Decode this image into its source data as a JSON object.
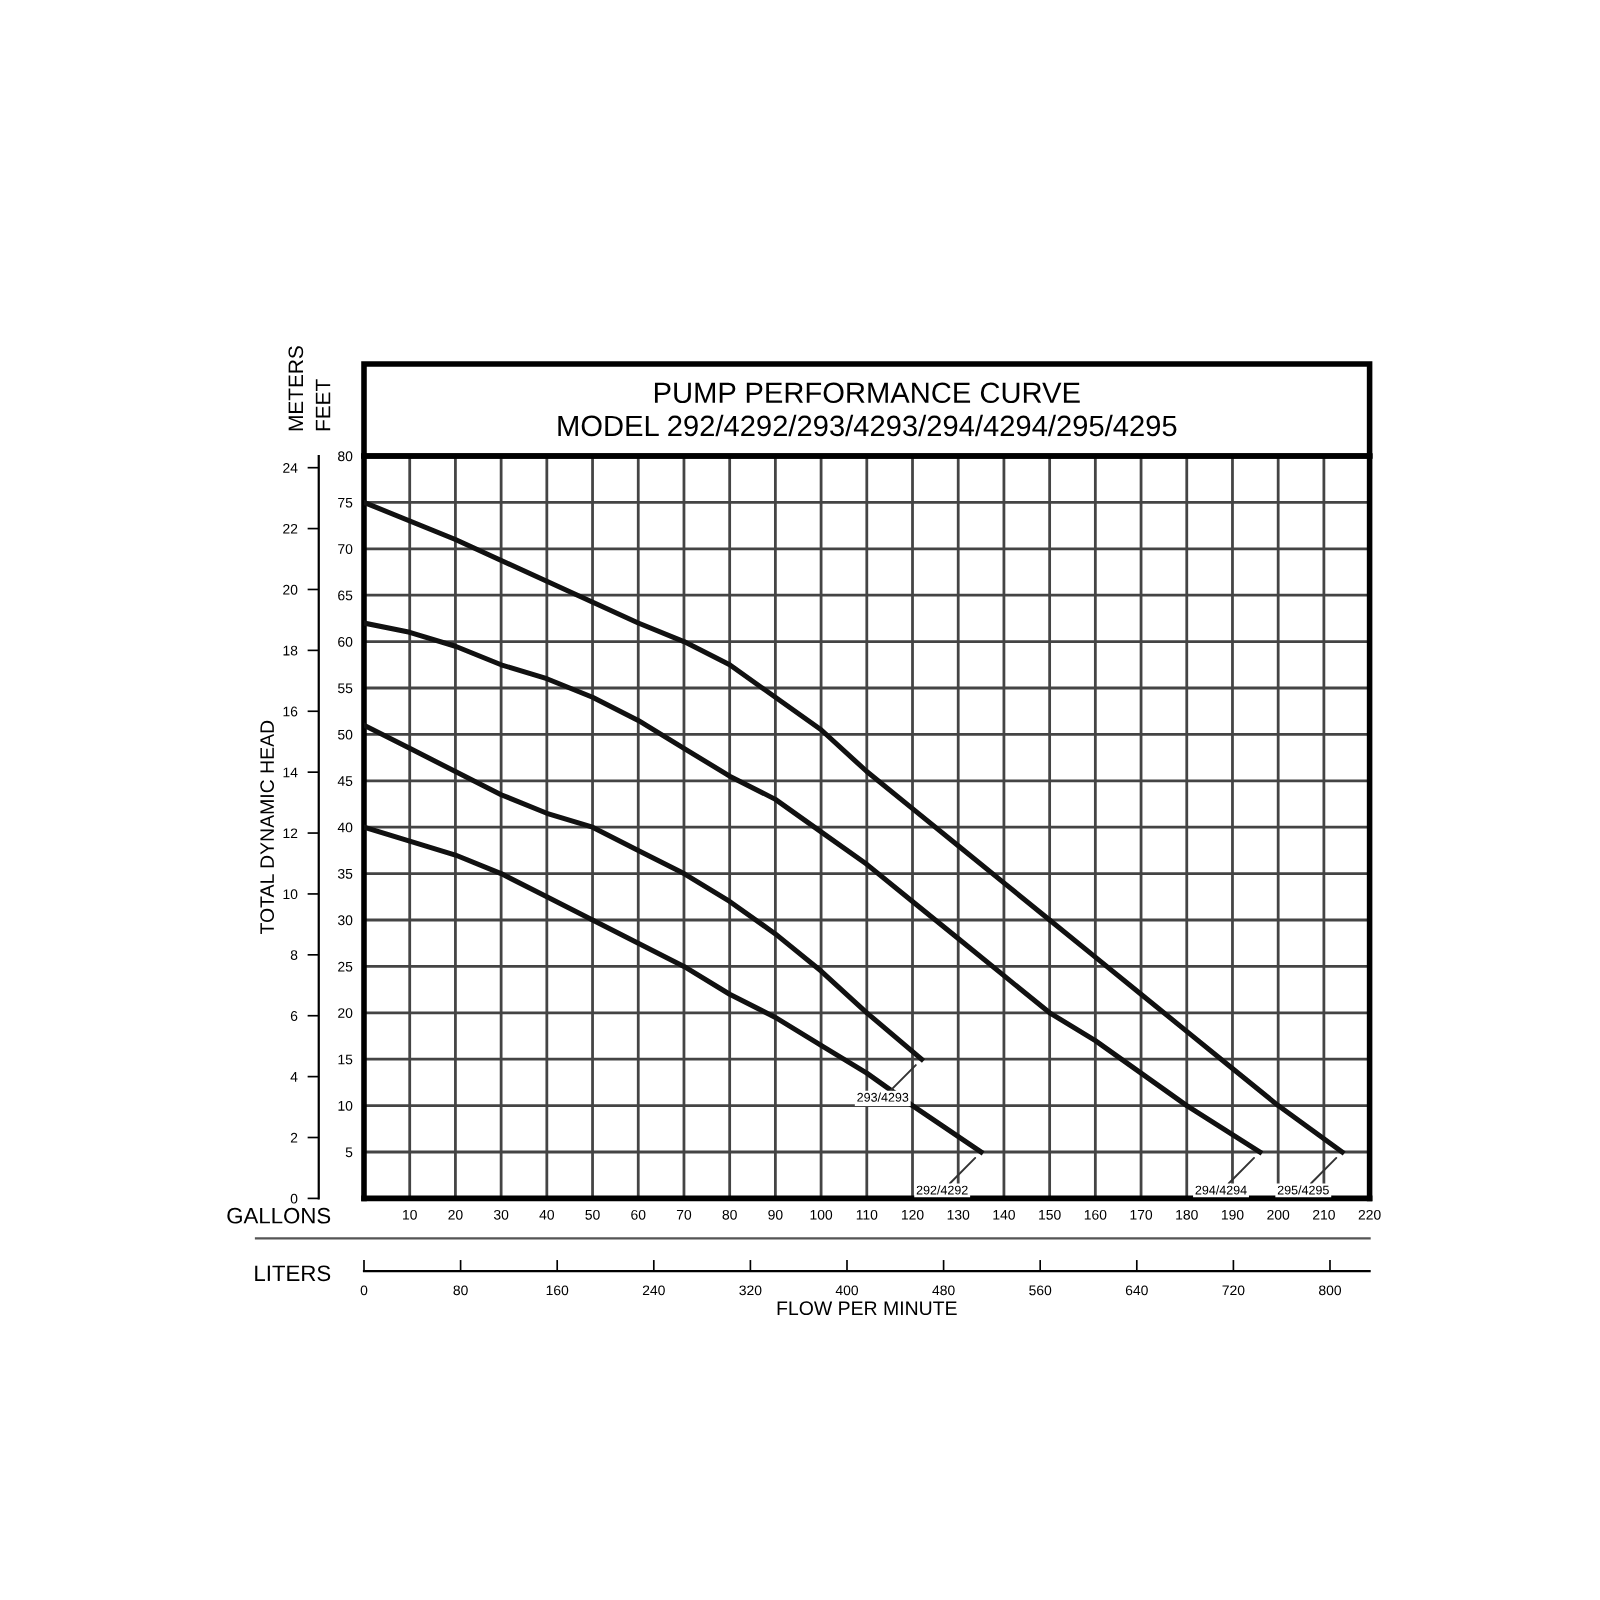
{
  "chart_data": {
    "type": "line",
    "title": "PUMP PERFORMANCE CURVE",
    "subtitle": "MODEL 292/4292/293/4293/294/4294/295/4295",
    "xlabel": "GALLONS",
    "x2label": "LITERS",
    "ylabel": "FEET",
    "y2label": "METERS",
    "annotations": [
      "TOTAL DYNAMIC HEAD",
      "FLOW PER MINUTE"
    ],
    "series": [
      {
        "name": "292/4292",
        "color": "#111111",
        "x": [
          0,
          10,
          20,
          30,
          40,
          50,
          60,
          70,
          80,
          90,
          100,
          110,
          120,
          135
        ],
        "values": [
          40,
          38.5,
          37,
          35,
          32.5,
          30,
          27.5,
          25,
          22,
          19.5,
          16.5,
          13.5,
          10,
          5
        ]
      },
      {
        "name": "293/4293",
        "color": "#111111",
        "x": [
          0,
          10,
          20,
          30,
          40,
          50,
          60,
          70,
          80,
          90,
          100,
          110,
          122
        ],
        "values": [
          51,
          48.5,
          46,
          43.5,
          41.5,
          40,
          37.5,
          35,
          32,
          28.5,
          24.5,
          20,
          15
        ]
      },
      {
        "name": "294/4294",
        "color": "#111111",
        "x": [
          0,
          10,
          20,
          30,
          40,
          50,
          60,
          70,
          80,
          90,
          100,
          110,
          120,
          130,
          140,
          150,
          160,
          170,
          180,
          196
        ],
        "values": [
          62,
          61,
          59.5,
          57.5,
          56,
          54,
          51.5,
          48.5,
          45.5,
          43,
          39.5,
          36,
          32,
          28,
          24,
          20,
          17,
          13.5,
          10,
          5
        ]
      },
      {
        "name": "295/4295",
        "color": "#111111",
        "x": [
          0,
          20,
          40,
          60,
          70,
          80,
          90,
          100,
          110,
          120,
          130,
          140,
          150,
          160,
          170,
          180,
          190,
          200,
          214
        ],
        "values": [
          75,
          71,
          66.5,
          62,
          60,
          57.5,
          54,
          50.5,
          46,
          42,
          38,
          34,
          30,
          26,
          22,
          18,
          14,
          10,
          5
        ]
      }
    ],
    "xlim": [
      0,
      220
    ],
    "xticks": [
      10,
      20,
      30,
      40,
      50,
      60,
      70,
      80,
      90,
      100,
      110,
      120,
      130,
      140,
      150,
      160,
      170,
      180,
      190,
      200,
      210,
      220
    ],
    "x2lim": [
      0,
      832.8
    ],
    "x2ticks": [
      0,
      80,
      160,
      240,
      320,
      400,
      480,
      560,
      640,
      720,
      800
    ],
    "ylim": [
      0,
      80
    ],
    "yticks": [
      5,
      10,
      15,
      20,
      25,
      30,
      35,
      40,
      45,
      50,
      55,
      60,
      65,
      70,
      75,
      80
    ],
    "y2lim": [
      0,
      24.384
    ],
    "y2ticks": [
      0,
      2,
      4,
      6,
      8,
      10,
      12,
      14,
      16,
      18,
      20,
      22,
      24
    ],
    "grid": true,
    "legend": false,
    "marker": "none",
    "line_style": "solid"
  }
}
